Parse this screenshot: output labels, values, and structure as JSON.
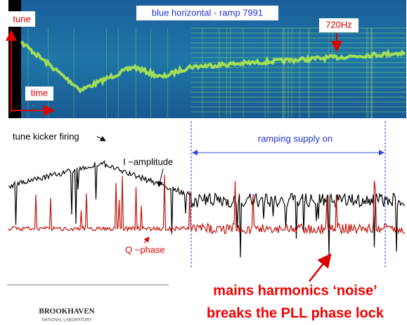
{
  "spectrogram": {
    "title": "blue horizontal - ramp 7991",
    "y_label": "tune",
    "x_label": "time",
    "marker": "720Hz"
  },
  "traces": {
    "kicker": "tune kicker firing",
    "amplitude": "I ~amplitude",
    "ramp": "ramping supply on",
    "phase": "Q ~phase"
  },
  "caption": {
    "line1": "mains harmonics ‘noise’",
    "line2": "breaks the PLL phase lock"
  },
  "logo": {
    "name": "BROOKHAVEN",
    "subtitle": "NATIONAL LABORATORY"
  }
}
